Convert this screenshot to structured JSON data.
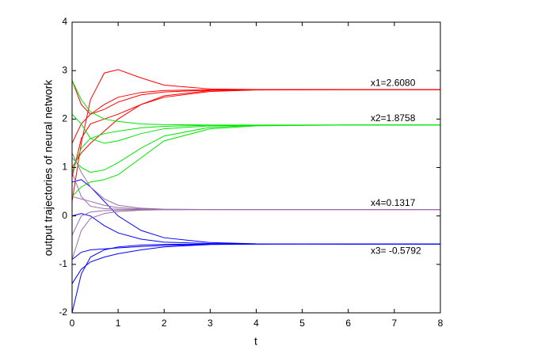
{
  "chart_data": {
    "type": "line",
    "xlabel": "t",
    "ylabel": "output trajectories of neural network",
    "xlim": [
      0,
      8
    ],
    "ylim": [
      -2,
      4
    ],
    "xticks": [
      0,
      1,
      2,
      3,
      4,
      5,
      6,
      7,
      8
    ],
    "yticks": [
      -2,
      -1,
      0,
      1,
      2,
      3,
      4
    ],
    "grid": false,
    "annotations": [
      "x1=2.6080",
      "x2=1.8758",
      "x4=0.1317",
      "x3= -0.5792"
    ],
    "x": [
      0,
      0.2,
      0.4,
      0.7,
      1,
      1.5,
      2,
      3,
      4,
      6,
      8
    ],
    "series": [
      {
        "color": "#ff0000",
        "values": [
          0.3,
          1.5,
          2.4,
          2.95,
          3.02,
          2.85,
          2.7,
          2.62,
          2.61,
          2.608,
          2.608
        ]
      },
      {
        "color": "#ff0000",
        "values": [
          2.8,
          2.3,
          2.1,
          2.2,
          2.35,
          2.5,
          2.56,
          2.6,
          2.607,
          2.608,
          2.608
        ]
      },
      {
        "color": "#ff0000",
        "values": [
          0.8,
          1.6,
          1.9,
          2.0,
          2.1,
          2.3,
          2.45,
          2.57,
          2.6,
          2.608,
          2.608
        ]
      },
      {
        "color": "#ff0000",
        "values": [
          1.5,
          1.9,
          2.1,
          2.3,
          2.45,
          2.55,
          2.59,
          2.605,
          2.608,
          2.608,
          2.608
        ]
      },
      {
        "color": "#ff0000",
        "values": [
          1.0,
          1.3,
          1.5,
          1.75,
          2.0,
          2.3,
          2.48,
          2.59,
          2.605,
          2.608,
          2.608
        ]
      },
      {
        "color": "#00e600",
        "values": [
          2.8,
          2.4,
          2.15,
          2.0,
          1.95,
          1.9,
          1.885,
          1.877,
          1.876,
          1.8758,
          1.8758
        ]
      },
      {
        "color": "#00e600",
        "values": [
          0.4,
          0.6,
          0.7,
          0.75,
          0.85,
          1.2,
          1.55,
          1.8,
          1.86,
          1.8758,
          1.8758
        ]
      },
      {
        "color": "#00e600",
        "values": [
          1.2,
          1.0,
          0.9,
          0.95,
          1.1,
          1.4,
          1.65,
          1.83,
          1.87,
          1.8758,
          1.8758
        ]
      },
      {
        "color": "#00e600",
        "values": [
          2.1,
          1.9,
          1.6,
          1.5,
          1.55,
          1.7,
          1.8,
          1.86,
          1.873,
          1.8758,
          1.8758
        ]
      },
      {
        "color": "#00e600",
        "values": [
          0.9,
          1.4,
          1.6,
          1.7,
          1.75,
          1.82,
          1.85,
          1.872,
          1.875,
          1.8758,
          1.8758
        ]
      },
      {
        "color": "#0000ff",
        "values": [
          -2.0,
          -1.2,
          -0.85,
          -0.7,
          -0.64,
          -0.6,
          -0.588,
          -0.58,
          -0.5793,
          -0.5792,
          -0.5792
        ]
      },
      {
        "color": "#0000ff",
        "values": [
          -1.4,
          -1.1,
          -0.95,
          -0.85,
          -0.78,
          -0.7,
          -0.64,
          -0.59,
          -0.581,
          -0.5792,
          -0.5792
        ]
      },
      {
        "color": "#0000ff",
        "values": [
          0.7,
          0.75,
          0.6,
          0.3,
          0.0,
          -0.3,
          -0.45,
          -0.55,
          -0.575,
          -0.5792,
          -0.5792
        ]
      },
      {
        "color": "#0000ff",
        "values": [
          -0.9,
          -0.75,
          -0.7,
          -0.68,
          -0.66,
          -0.63,
          -0.61,
          -0.585,
          -0.58,
          -0.5792,
          -0.5792
        ]
      },
      {
        "color": "#0000ff",
        "values": [
          0.0,
          0.05,
          0.0,
          -0.2,
          -0.35,
          -0.48,
          -0.54,
          -0.57,
          -0.578,
          -0.5792,
          -0.5792
        ]
      },
      {
        "color": "#9b6fa8",
        "values": [
          1.3,
          0.9,
          0.6,
          0.35,
          0.22,
          0.16,
          0.14,
          0.133,
          0.132,
          0.1317,
          0.1317
        ]
      },
      {
        "color": "#9b6fa8",
        "values": [
          -0.9,
          -0.3,
          -0.05,
          0.05,
          0.09,
          0.12,
          0.128,
          0.131,
          0.1317,
          0.1317,
          0.1317
        ]
      },
      {
        "color": "#9b6fa8",
        "values": [
          0.4,
          0.35,
          0.3,
          0.22,
          0.17,
          0.145,
          0.136,
          0.132,
          0.1317,
          0.1317,
          0.1317
        ]
      },
      {
        "color": "#9b6fa8",
        "values": [
          -0.4,
          0.0,
          0.08,
          0.11,
          0.12,
          0.128,
          0.13,
          0.1315,
          0.1317,
          0.1317,
          0.1317
        ]
      },
      {
        "color": "#9b6fa8",
        "values": [
          0.9,
          0.4,
          0.2,
          0.15,
          0.14,
          0.135,
          0.133,
          0.132,
          0.1317,
          0.1317,
          0.1317
        ]
      }
    ]
  }
}
